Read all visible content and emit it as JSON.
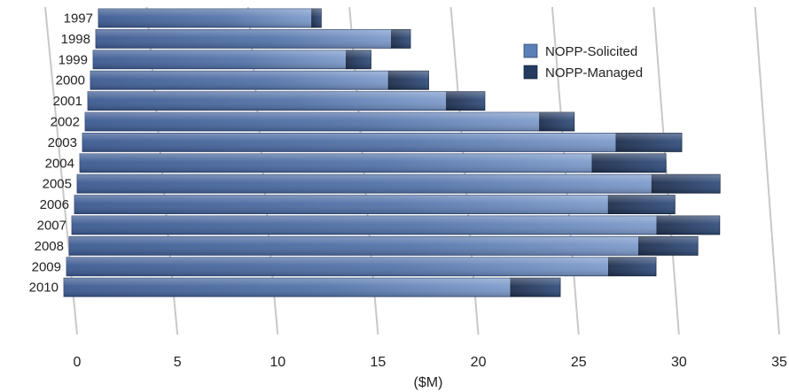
{
  "chart_data": {
    "type": "bar",
    "orientation": "horizontal",
    "stacked": true,
    "xlabel": "($M)",
    "xlim": [
      0,
      35
    ],
    "x_ticks": [
      0,
      5,
      10,
      15,
      20,
      25,
      30,
      35
    ],
    "grid": true,
    "legend_position": "top-right",
    "categories": [
      "1997",
      "1998",
      "1999",
      "2000",
      "2001",
      "2002",
      "2003",
      "2004",
      "2005",
      "2006",
      "2007",
      "2008",
      "2009",
      "2010"
    ],
    "series": [
      {
        "name": "NOPP-Solicited",
        "color": "#5b7fb8",
        "values": [
          11.3,
          15.6,
          13.3,
          15.6,
          18.7,
          23.6,
          27.6,
          26.4,
          29.5,
          27.3,
          29.8,
          28.9,
          27.4,
          22.5
        ]
      },
      {
        "name": "NOPP-Managed",
        "color": "#243a5e",
        "values": [
          0.5,
          1.0,
          1.3,
          2.1,
          2.0,
          1.8,
          3.4,
          3.8,
          3.5,
          3.4,
          3.2,
          3.0,
          2.4,
          2.5
        ]
      }
    ]
  }
}
